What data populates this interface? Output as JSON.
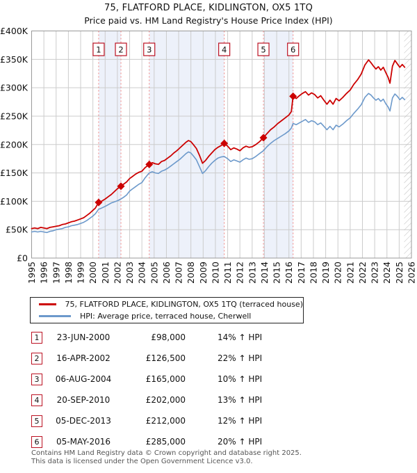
{
  "title": "75, FLATFORD PLACE, KIDLINGTON, OX5 1TQ",
  "subtitle": "Price paid vs. HM Land Registry's House Price Index (HPI)",
  "legend": {
    "items": [
      {
        "label": "75, FLATFORD PLACE, KIDLINGTON, OX5 1TQ (terraced house)",
        "color": "#cc0000"
      },
      {
        "label": "HPI: Average price, terraced house, Cherwell",
        "color": "#6c99cb"
      }
    ]
  },
  "transactions": [
    {
      "num": "1",
      "date": "23-JUN-2000",
      "price": "£98,000",
      "hpi": "14% ↑ HPI",
      "year": 2000.47,
      "value_k": 98
    },
    {
      "num": "2",
      "date": "16-APR-2002",
      "price": "£126,500",
      "hpi": "22% ↑ HPI",
      "year": 2002.29,
      "value_k": 126.5
    },
    {
      "num": "3",
      "date": "06-AUG-2004",
      "price": "£165,000",
      "hpi": "10% ↑ HPI",
      "year": 2004.6,
      "value_k": 165
    },
    {
      "num": "4",
      "date": "20-SEP-2010",
      "price": "£202,000",
      "hpi": "13% ↑ HPI",
      "year": 2010.72,
      "value_k": 202
    },
    {
      "num": "5",
      "date": "05-DEC-2013",
      "price": "£212,000",
      "hpi": "12% ↑ HPI",
      "year": 2013.92,
      "value_k": 212
    },
    {
      "num": "6",
      "date": "05-MAY-2016",
      "price": "£285,000",
      "hpi": "20% ↑ HPI",
      "year": 2016.34,
      "value_k": 285
    }
  ],
  "footer": {
    "line1": "Contains HM Land Registry data © Crown copyright and database right 2025.",
    "line2": "This data is licensed under the Open Government Licence v3.0."
  },
  "chart_data": {
    "type": "line",
    "title": "75, FLATFORD PLACE, KIDLINGTON, OX5 1TQ",
    "xlabel": "",
    "ylabel": "",
    "xlim": [
      1995,
      2026
    ],
    "ylim": [
      0,
      400000
    ],
    "ylim_k": [
      0,
      400
    ],
    "unit": "GBP_thousands",
    "grid": true,
    "legend_position": "below",
    "x_ticks": [
      1995,
      1996,
      1997,
      1998,
      1999,
      2000,
      2001,
      2002,
      2003,
      2004,
      2005,
      2006,
      2007,
      2008,
      2009,
      2010,
      2011,
      2012,
      2013,
      2014,
      2015,
      2016,
      2017,
      2018,
      2019,
      2020,
      2021,
      2022,
      2023,
      2024,
      2025,
      2026
    ],
    "y_tick_values_k": [
      0,
      50,
      100,
      150,
      200,
      250,
      300,
      350,
      400
    ],
    "y_tick_labels": [
      "£0",
      "£50K",
      "£100K",
      "£150K",
      "£200K",
      "£250K",
      "£300K",
      "£350K",
      "£400K"
    ],
    "shaded_bands": [
      [
        2000.47,
        2002.29
      ],
      [
        2004.6,
        2010.72
      ],
      [
        2013.92,
        2016.34
      ]
    ],
    "future_hatch_start": 2025.4,
    "colors": {
      "price_line": "#cc0000",
      "hpi_line": "#6c99cb",
      "grid": "#cccccc",
      "border": "#999999",
      "band": "#edf1fa",
      "dash": "#f0827f",
      "marker_box_border": "#bb1122",
      "text": "#111111"
    },
    "series": [
      {
        "name": "75, FLATFORD PLACE, KIDLINGTON, OX5 1TQ (terraced house)",
        "color": "#cc0000",
        "width": 1.8,
        "points": [
          [
            1995.0,
            52
          ],
          [
            1995.25,
            53
          ],
          [
            1995.5,
            52
          ],
          [
            1995.75,
            54
          ],
          [
            1996.0,
            53
          ],
          [
            1996.25,
            52
          ],
          [
            1996.5,
            54
          ],
          [
            1996.75,
            55
          ],
          [
            1997.0,
            56
          ],
          [
            1997.25,
            57
          ],
          [
            1997.5,
            59
          ],
          [
            1997.75,
            60
          ],
          [
            1998.0,
            62
          ],
          [
            1998.25,
            64
          ],
          [
            1998.5,
            65
          ],
          [
            1998.75,
            67
          ],
          [
            1999.0,
            69
          ],
          [
            1999.25,
            71
          ],
          [
            1999.5,
            75
          ],
          [
            1999.75,
            79
          ],
          [
            2000.0,
            84
          ],
          [
            2000.2,
            88
          ],
          [
            2000.47,
            98
          ],
          [
            2000.7,
            100
          ],
          [
            2001.0,
            104
          ],
          [
            2001.25,
            108
          ],
          [
            2001.5,
            112
          ],
          [
            2001.75,
            117
          ],
          [
            2002.0,
            122
          ],
          [
            2002.29,
            126.5
          ],
          [
            2002.5,
            130
          ],
          [
            2002.75,
            134
          ],
          [
            2003.0,
            140
          ],
          [
            2003.25,
            144
          ],
          [
            2003.5,
            148
          ],
          [
            2003.75,
            151
          ],
          [
            2004.0,
            153
          ],
          [
            2004.25,
            159
          ],
          [
            2004.6,
            165
          ],
          [
            2004.85,
            168
          ],
          [
            2005.1,
            166
          ],
          [
            2005.35,
            165
          ],
          [
            2005.6,
            170
          ],
          [
            2005.85,
            172
          ],
          [
            2006.1,
            176
          ],
          [
            2006.35,
            180
          ],
          [
            2006.6,
            185
          ],
          [
            2006.85,
            189
          ],
          [
            2007.1,
            194
          ],
          [
            2007.35,
            199
          ],
          [
            2007.6,
            204
          ],
          [
            2007.8,
            207
          ],
          [
            2008.0,
            205
          ],
          [
            2008.2,
            200
          ],
          [
            2008.45,
            193
          ],
          [
            2008.7,
            181
          ],
          [
            2008.95,
            167
          ],
          [
            2009.2,
            172
          ],
          [
            2009.45,
            179
          ],
          [
            2009.7,
            185
          ],
          [
            2009.95,
            191
          ],
          [
            2010.2,
            195
          ],
          [
            2010.45,
            198
          ],
          [
            2010.72,
            202
          ],
          [
            2011.0,
            197
          ],
          [
            2011.25,
            191
          ],
          [
            2011.5,
            194
          ],
          [
            2011.75,
            192
          ],
          [
            2012.0,
            189
          ],
          [
            2012.25,
            194
          ],
          [
            2012.5,
            197
          ],
          [
            2012.75,
            195
          ],
          [
            2013.0,
            196
          ],
          [
            2013.3,
            200
          ],
          [
            2013.6,
            205
          ],
          [
            2013.92,
            212
          ],
          [
            2014.2,
            219
          ],
          [
            2014.5,
            226
          ],
          [
            2014.8,
            231
          ],
          [
            2015.1,
            237
          ],
          [
            2015.4,
            242
          ],
          [
            2015.7,
            247
          ],
          [
            2016.0,
            252
          ],
          [
            2016.2,
            258
          ],
          [
            2016.34,
            285
          ],
          [
            2016.6,
            281
          ],
          [
            2016.85,
            286
          ],
          [
            2017.1,
            290
          ],
          [
            2017.35,
            293
          ],
          [
            2017.6,
            287
          ],
          [
            2017.85,
            291
          ],
          [
            2018.1,
            288
          ],
          [
            2018.35,
            282
          ],
          [
            2018.6,
            286
          ],
          [
            2018.85,
            278
          ],
          [
            2019.1,
            271
          ],
          [
            2019.35,
            278
          ],
          [
            2019.6,
            271
          ],
          [
            2019.85,
            281
          ],
          [
            2020.1,
            277
          ],
          [
            2020.4,
            283
          ],
          [
            2020.7,
            290
          ],
          [
            2021.0,
            296
          ],
          [
            2021.3,
            306
          ],
          [
            2021.6,
            314
          ],
          [
            2021.9,
            324
          ],
          [
            2022.2,
            340
          ],
          [
            2022.5,
            349
          ],
          [
            2022.7,
            344
          ],
          [
            2022.9,
            338
          ],
          [
            2023.1,
            333
          ],
          [
            2023.3,
            337
          ],
          [
            2023.5,
            331
          ],
          [
            2023.7,
            336
          ],
          [
            2023.9,
            327
          ],
          [
            2024.1,
            318
          ],
          [
            2024.25,
            308
          ],
          [
            2024.45,
            338
          ],
          [
            2024.65,
            348
          ],
          [
            2024.85,
            342
          ],
          [
            2025.05,
            336
          ],
          [
            2025.25,
            341
          ],
          [
            2025.45,
            336
          ]
        ]
      },
      {
        "name": "HPI: Average price, terraced house, Cherwell",
        "color": "#6c99cb",
        "width": 1.6,
        "points": [
          [
            1995.0,
            46
          ],
          [
            1995.25,
            47
          ],
          [
            1995.5,
            46
          ],
          [
            1995.75,
            47
          ],
          [
            1996.0,
            46
          ],
          [
            1996.25,
            45
          ],
          [
            1996.5,
            47
          ],
          [
            1996.75,
            48
          ],
          [
            1997.0,
            50
          ],
          [
            1997.25,
            51
          ],
          [
            1997.5,
            52
          ],
          [
            1997.75,
            54
          ],
          [
            1998.0,
            55
          ],
          [
            1998.25,
            57
          ],
          [
            1998.5,
            58
          ],
          [
            1998.75,
            59
          ],
          [
            1999.0,
            61
          ],
          [
            1999.25,
            63
          ],
          [
            1999.5,
            66
          ],
          [
            1999.75,
            70
          ],
          [
            2000.0,
            74
          ],
          [
            2000.2,
            78
          ],
          [
            2000.47,
            86
          ],
          [
            2000.7,
            88
          ],
          [
            2001.0,
            91
          ],
          [
            2001.25,
            94
          ],
          [
            2001.5,
            97
          ],
          [
            2001.75,
            99
          ],
          [
            2002.0,
            101
          ],
          [
            2002.29,
            104
          ],
          [
            2002.5,
            107
          ],
          [
            2002.75,
            111
          ],
          [
            2003.0,
            118
          ],
          [
            2003.25,
            122
          ],
          [
            2003.5,
            126
          ],
          [
            2003.75,
            130
          ],
          [
            2004.0,
            133
          ],
          [
            2004.25,
            141
          ],
          [
            2004.6,
            150
          ],
          [
            2004.85,
            152
          ],
          [
            2005.1,
            150
          ],
          [
            2005.35,
            149
          ],
          [
            2005.6,
            153
          ],
          [
            2005.85,
            155
          ],
          [
            2006.1,
            158
          ],
          [
            2006.35,
            162
          ],
          [
            2006.6,
            166
          ],
          [
            2006.85,
            170
          ],
          [
            2007.1,
            174
          ],
          [
            2007.35,
            179
          ],
          [
            2007.6,
            184
          ],
          [
            2007.8,
            187
          ],
          [
            2008.0,
            185
          ],
          [
            2008.2,
            180
          ],
          [
            2008.45,
            173
          ],
          [
            2008.7,
            161
          ],
          [
            2008.95,
            149
          ],
          [
            2009.2,
            154
          ],
          [
            2009.45,
            161
          ],
          [
            2009.7,
            167
          ],
          [
            2009.95,
            172
          ],
          [
            2010.2,
            176
          ],
          [
            2010.45,
            178
          ],
          [
            2010.72,
            179
          ],
          [
            2011.0,
            175
          ],
          [
            2011.25,
            170
          ],
          [
            2011.5,
            173
          ],
          [
            2011.75,
            171
          ],
          [
            2012.0,
            169
          ],
          [
            2012.25,
            173
          ],
          [
            2012.5,
            176
          ],
          [
            2012.75,
            174
          ],
          [
            2013.0,
            175
          ],
          [
            2013.3,
            179
          ],
          [
            2013.6,
            184
          ],
          [
            2013.92,
            189
          ],
          [
            2014.2,
            196
          ],
          [
            2014.5,
            202
          ],
          [
            2014.8,
            207
          ],
          [
            2015.1,
            211
          ],
          [
            2015.4,
            215
          ],
          [
            2015.7,
            219
          ],
          [
            2016.0,
            224
          ],
          [
            2016.2,
            229
          ],
          [
            2016.34,
            237
          ],
          [
            2016.6,
            235
          ],
          [
            2016.85,
            238
          ],
          [
            2017.1,
            241
          ],
          [
            2017.35,
            244
          ],
          [
            2017.6,
            239
          ],
          [
            2017.85,
            242
          ],
          [
            2018.1,
            240
          ],
          [
            2018.35,
            235
          ],
          [
            2018.6,
            238
          ],
          [
            2018.85,
            232
          ],
          [
            2019.1,
            226
          ],
          [
            2019.35,
            232
          ],
          [
            2019.6,
            226
          ],
          [
            2019.85,
            234
          ],
          [
            2020.1,
            231
          ],
          [
            2020.4,
            236
          ],
          [
            2020.7,
            242
          ],
          [
            2021.0,
            247
          ],
          [
            2021.3,
            255
          ],
          [
            2021.6,
            262
          ],
          [
            2021.9,
            270
          ],
          [
            2022.2,
            283
          ],
          [
            2022.5,
            290
          ],
          [
            2022.7,
            287
          ],
          [
            2022.9,
            282
          ],
          [
            2023.1,
            278
          ],
          [
            2023.3,
            281
          ],
          [
            2023.5,
            276
          ],
          [
            2023.7,
            280
          ],
          [
            2023.9,
            272
          ],
          [
            2024.1,
            266
          ],
          [
            2024.25,
            259
          ],
          [
            2024.45,
            282
          ],
          [
            2024.65,
            289
          ],
          [
            2024.85,
            285
          ],
          [
            2025.05,
            279
          ],
          [
            2025.25,
            283
          ],
          [
            2025.45,
            279
          ]
        ]
      }
    ]
  }
}
